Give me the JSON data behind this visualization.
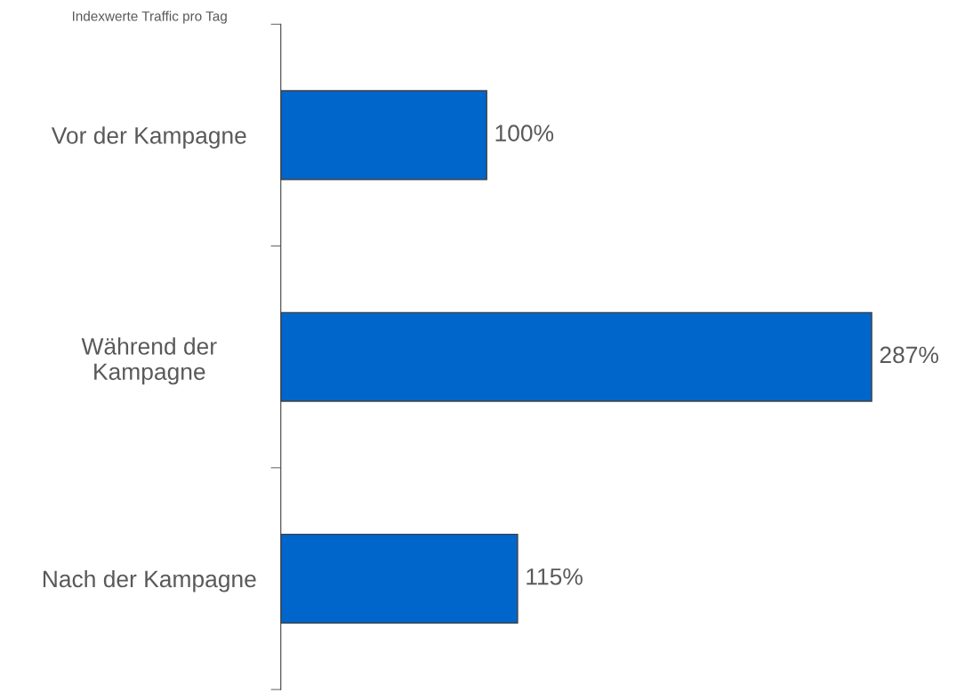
{
  "chart_data": {
    "type": "bar",
    "orientation": "horizontal",
    "title": "Indexwerte Traffic pro Tag",
    "categories": [
      "Vor der Kampagne",
      "Während der\nKampagne",
      "Nach der Kampagne"
    ],
    "values": [
      100,
      287,
      115
    ],
    "color": "#0066cc",
    "value_labels": [
      "100%",
      "287%",
      "115%"
    ],
    "grid": false,
    "legend": false
  }
}
